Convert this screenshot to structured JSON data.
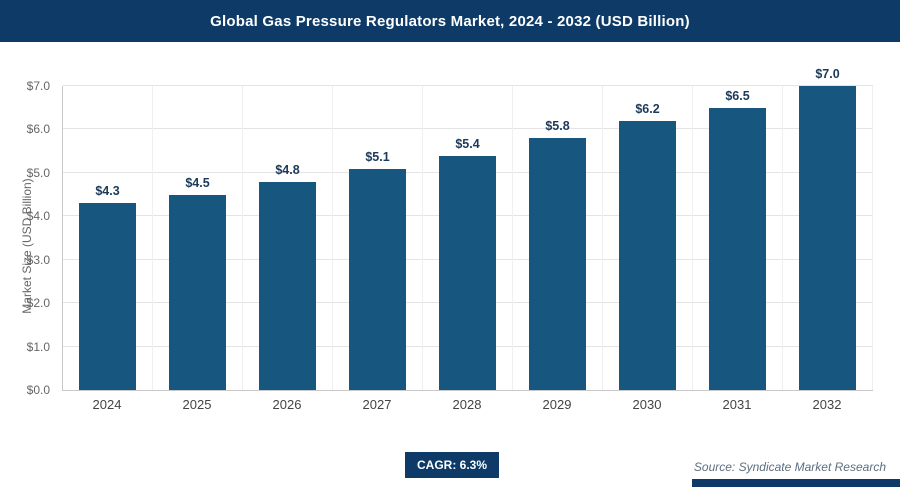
{
  "header": {
    "title": "Global Gas Pressure Regulators Market, 2024 - 2032 (USD Billion)"
  },
  "chart_data": {
    "type": "bar",
    "title": "Global Gas Pressure Regulators Market, 2024 - 2032 (USD Billion)",
    "categories": [
      "2024",
      "2025",
      "2026",
      "2027",
      "2028",
      "2029",
      "2030",
      "2031",
      "2032"
    ],
    "values": [
      4.3,
      4.5,
      4.8,
      5.1,
      5.4,
      5.8,
      6.2,
      6.5,
      7.0
    ],
    "value_labels": [
      "$4.3",
      "$4.5",
      "$4.8",
      "$5.1",
      "$5.4",
      "$5.8",
      "$6.2",
      "$6.5",
      "$7.0"
    ],
    "xlabel": "",
    "ylabel": "Market Size (USD Billion)",
    "ylim": [
      0,
      7
    ],
    "ytick_step": 1,
    "ytick_labels": [
      "$0.0",
      "$1.0",
      "$2.0",
      "$3.0",
      "$4.0",
      "$5.0",
      "$6.0",
      "$7.0"
    ],
    "grid": "horizontal light gray lines at each $1.0, faint vertical separators between categories",
    "legend": "none",
    "bar_color": "#16567f"
  },
  "footer": {
    "cagr_label": "CAGR: 6.3%",
    "source": "Source: Syndicate Market Research"
  },
  "colors": {
    "header_bg": "#0d3a66",
    "bar": "#16567f",
    "value_label": "#1b3a5a",
    "axis_text": "#666666",
    "accent_bar": "#0d3a66"
  }
}
